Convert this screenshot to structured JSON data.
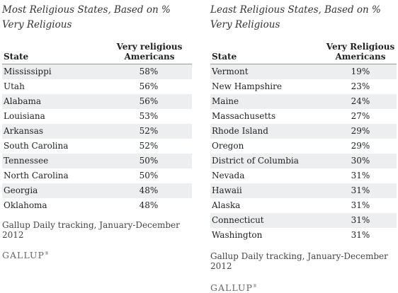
{
  "chart_data": [
    {
      "type": "table",
      "title": "Most Religious States, Based on % Very Religious",
      "columns": [
        "State",
        "Very religious Americans"
      ],
      "rows": [
        {
          "state": "Mississippi",
          "value": "58%"
        },
        {
          "state": "Utah",
          "value": "56%"
        },
        {
          "state": "Alabama",
          "value": "56%"
        },
        {
          "state": "Louisiana",
          "value": "53%"
        },
        {
          "state": "Arkansas",
          "value": "52%"
        },
        {
          "state": "South Carolina",
          "value": "52%"
        },
        {
          "state": "Tennessee",
          "value": "50%"
        },
        {
          "state": "North Carolina",
          "value": "50%"
        },
        {
          "state": "Georgia",
          "value": "48%"
        },
        {
          "state": "Oklahoma",
          "value": "48%"
        }
      ],
      "source": "Gallup Daily tracking, January-December 2012",
      "brand": "GALLUP"
    },
    {
      "type": "table",
      "title": "Least Religious States, Based on % Very Religious",
      "columns": [
        "State",
        "Very Religious Americans"
      ],
      "rows": [
        {
          "state": "Vermont",
          "value": "19%"
        },
        {
          "state": "New Hampshire",
          "value": "23%"
        },
        {
          "state": "Maine",
          "value": "24%"
        },
        {
          "state": "Massachusetts",
          "value": "27%"
        },
        {
          "state": "Rhode Island",
          "value": "29%"
        },
        {
          "state": "Oregon",
          "value": "29%"
        },
        {
          "state": "District of Columbia",
          "value": "30%"
        },
        {
          "state": "Nevada",
          "value": "31%"
        },
        {
          "state": "Hawaii",
          "value": "31%"
        },
        {
          "state": "Alaska",
          "value": "31%"
        },
        {
          "state": "Connecticut",
          "value": "31%"
        },
        {
          "state": "Washington",
          "value": "31%"
        }
      ],
      "source": "Gallup Daily tracking, January-December 2012",
      "brand": "GALLUP"
    }
  ]
}
